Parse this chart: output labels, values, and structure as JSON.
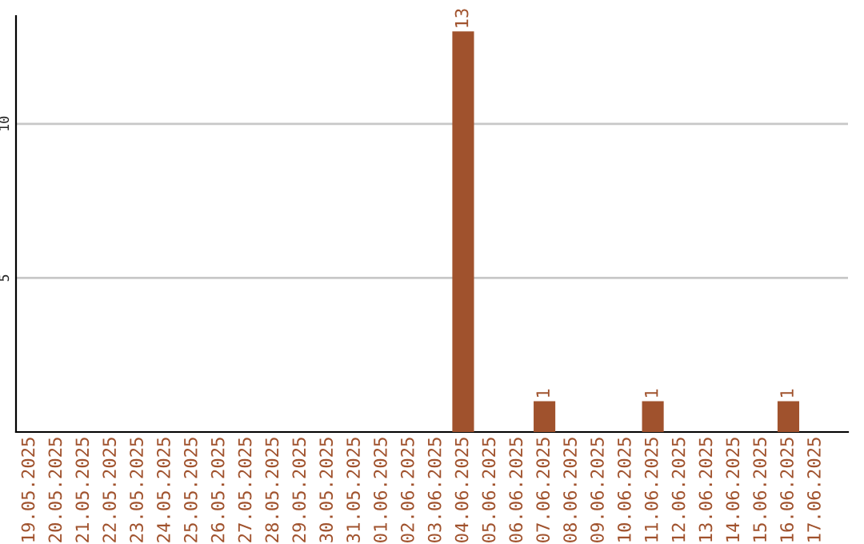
{
  "chart_data": {
    "type": "bar",
    "categories": [
      "19.05.2025",
      "20.05.2025",
      "21.05.2025",
      "22.05.2025",
      "23.05.2025",
      "24.05.2025",
      "25.05.2025",
      "26.05.2025",
      "27.05.2025",
      "28.05.2025",
      "29.05.2025",
      "30.05.2025",
      "31.05.2025",
      "01.06.2025",
      "02.06.2025",
      "03.06.2025",
      "04.06.2025",
      "05.06.2025",
      "06.06.2025",
      "07.06.2025",
      "08.06.2025",
      "09.06.2025",
      "10.06.2025",
      "11.06.2025",
      "12.06.2025",
      "13.06.2025",
      "14.06.2025",
      "15.06.2025",
      "16.06.2025",
      "17.06.2025"
    ],
    "values": [
      0,
      0,
      0,
      0,
      0,
      0,
      0,
      0,
      0,
      0,
      0,
      0,
      0,
      0,
      0,
      0,
      13,
      0,
      0,
      1,
      0,
      0,
      0,
      1,
      0,
      0,
      0,
      0,
      1,
      0
    ],
    "value_labels": [
      null,
      null,
      null,
      null,
      null,
      null,
      null,
      null,
      null,
      null,
      null,
      null,
      null,
      null,
      null,
      null,
      "13",
      null,
      null,
      "1",
      null,
      null,
      null,
      "1",
      null,
      null,
      null,
      null,
      "1",
      null
    ],
    "color": "#a0522d",
    "ylim": [
      0,
      13.5
    ],
    "yticks": [
      5,
      10
    ],
    "grid": "y",
    "legend": false
  }
}
